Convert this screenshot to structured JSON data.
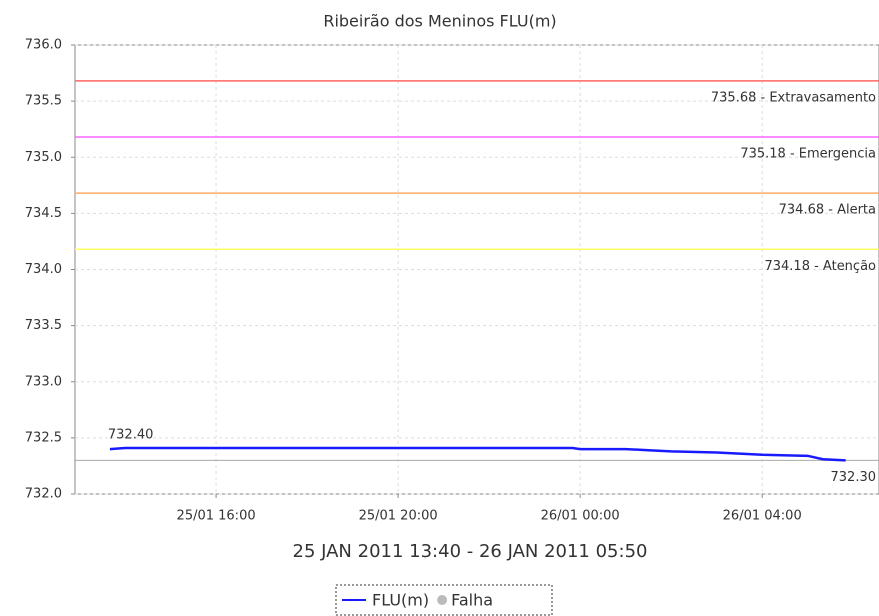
{
  "chart_data": {
    "type": "line",
    "title": "Ribeirão dos Meninos FLU(m)",
    "x_label": "25 JAN 2011 13:40 - 26 JAN 2011 05:50",
    "x": [
      "25/01 13:40",
      "25/01 14:00",
      "25/01 15:00",
      "25/01 16:00",
      "25/01 17:00",
      "25/01 18:00",
      "25/01 19:00",
      "25/01 20:00",
      "25/01 21:00",
      "25/01 22:00",
      "25/01 23:00",
      "25/01 23:50",
      "26/01 00:00",
      "26/01 01:00",
      "26/01 01:30",
      "26/01 02:00",
      "26/01 03:00",
      "26/01 03:30",
      "26/01 04:00",
      "26/01 05:00",
      "26/01 05:20",
      "26/01 05:50"
    ],
    "series": [
      {
        "name": "FLU(m)",
        "color": "#1a1aff",
        "values": [
          732.4,
          732.41,
          732.41,
          732.41,
          732.41,
          732.41,
          732.41,
          732.41,
          732.41,
          732.41,
          732.41,
          732.41,
          732.4,
          732.4,
          732.39,
          732.38,
          732.37,
          732.36,
          732.35,
          732.34,
          732.31,
          732.3
        ],
        "value_labels": [
          "732.40",
          null,
          null,
          null,
          null,
          null,
          null,
          null,
          null,
          null,
          null,
          null,
          null,
          null,
          null,
          null,
          null,
          null,
          null,
          null,
          null,
          "732.30"
        ]
      }
    ],
    "legend_extra": [
      {
        "name": "Falha",
        "color": "#bbbbbb"
      }
    ],
    "reference_line": {
      "value": 732.3,
      "color": "#aaaaaa"
    },
    "thresholds": [
      {
        "value": 735.68,
        "label": "735.68 - Extravasamento",
        "color": "#ff6666"
      },
      {
        "value": 735.18,
        "label": "735.18 - Emergencia",
        "color": "#ff66ff"
      },
      {
        "value": 734.68,
        "label": "734.68 - Alerta",
        "color": "#ffaa66"
      },
      {
        "value": 734.18,
        "label": "734.18 - Atenção",
        "color": "#ffff66"
      }
    ],
    "xlim": [
      "25/01 12:54",
      "26/01 06:34"
    ],
    "xticks": [
      "25/01 16:00",
      "25/01 20:00",
      "26/01 00:00",
      "26/01 04:00"
    ],
    "ylim": [
      732.0,
      736.0
    ],
    "yticks": [
      {
        "value": 732.0,
        "label": "732.0"
      },
      {
        "value": 732.5,
        "label": "732.5"
      },
      {
        "value": 733.0,
        "label": "733.0"
      },
      {
        "value": 733.5,
        "label": "733.5"
      },
      {
        "value": 734.0,
        "label": "734.0"
      },
      {
        "value": 734.5,
        "label": "734.5"
      },
      {
        "value": 735.0,
        "label": "735.0"
      },
      {
        "value": 735.5,
        "label": "735.5"
      },
      {
        "value": 736.0,
        "label": "736.0"
      }
    ],
    "grid": true
  }
}
